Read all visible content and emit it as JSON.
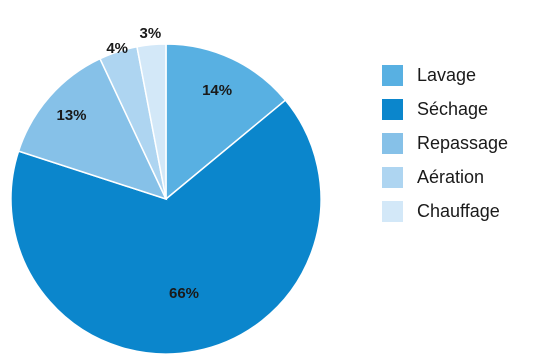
{
  "chart_data": {
    "type": "pie",
    "title": "",
    "start_angle_deg": 0,
    "direction": "clockwise",
    "legend_position": "right",
    "slices": [
      {
        "name": "Lavage",
        "value": 14,
        "label": "14%",
        "color": "#58b0e2"
      },
      {
        "name": "Séchage",
        "value": 66,
        "label": "66%",
        "color": "#0b86cc"
      },
      {
        "name": "Repassage",
        "value": 13,
        "label": "13%",
        "color": "#86c1e8"
      },
      {
        "name": "Aération",
        "value": 4,
        "label": "4%",
        "color": "#aed5f1"
      },
      {
        "name": "Chauffage",
        "value": 3,
        "label": "3%",
        "color": "#d3e8f8"
      }
    ]
  }
}
